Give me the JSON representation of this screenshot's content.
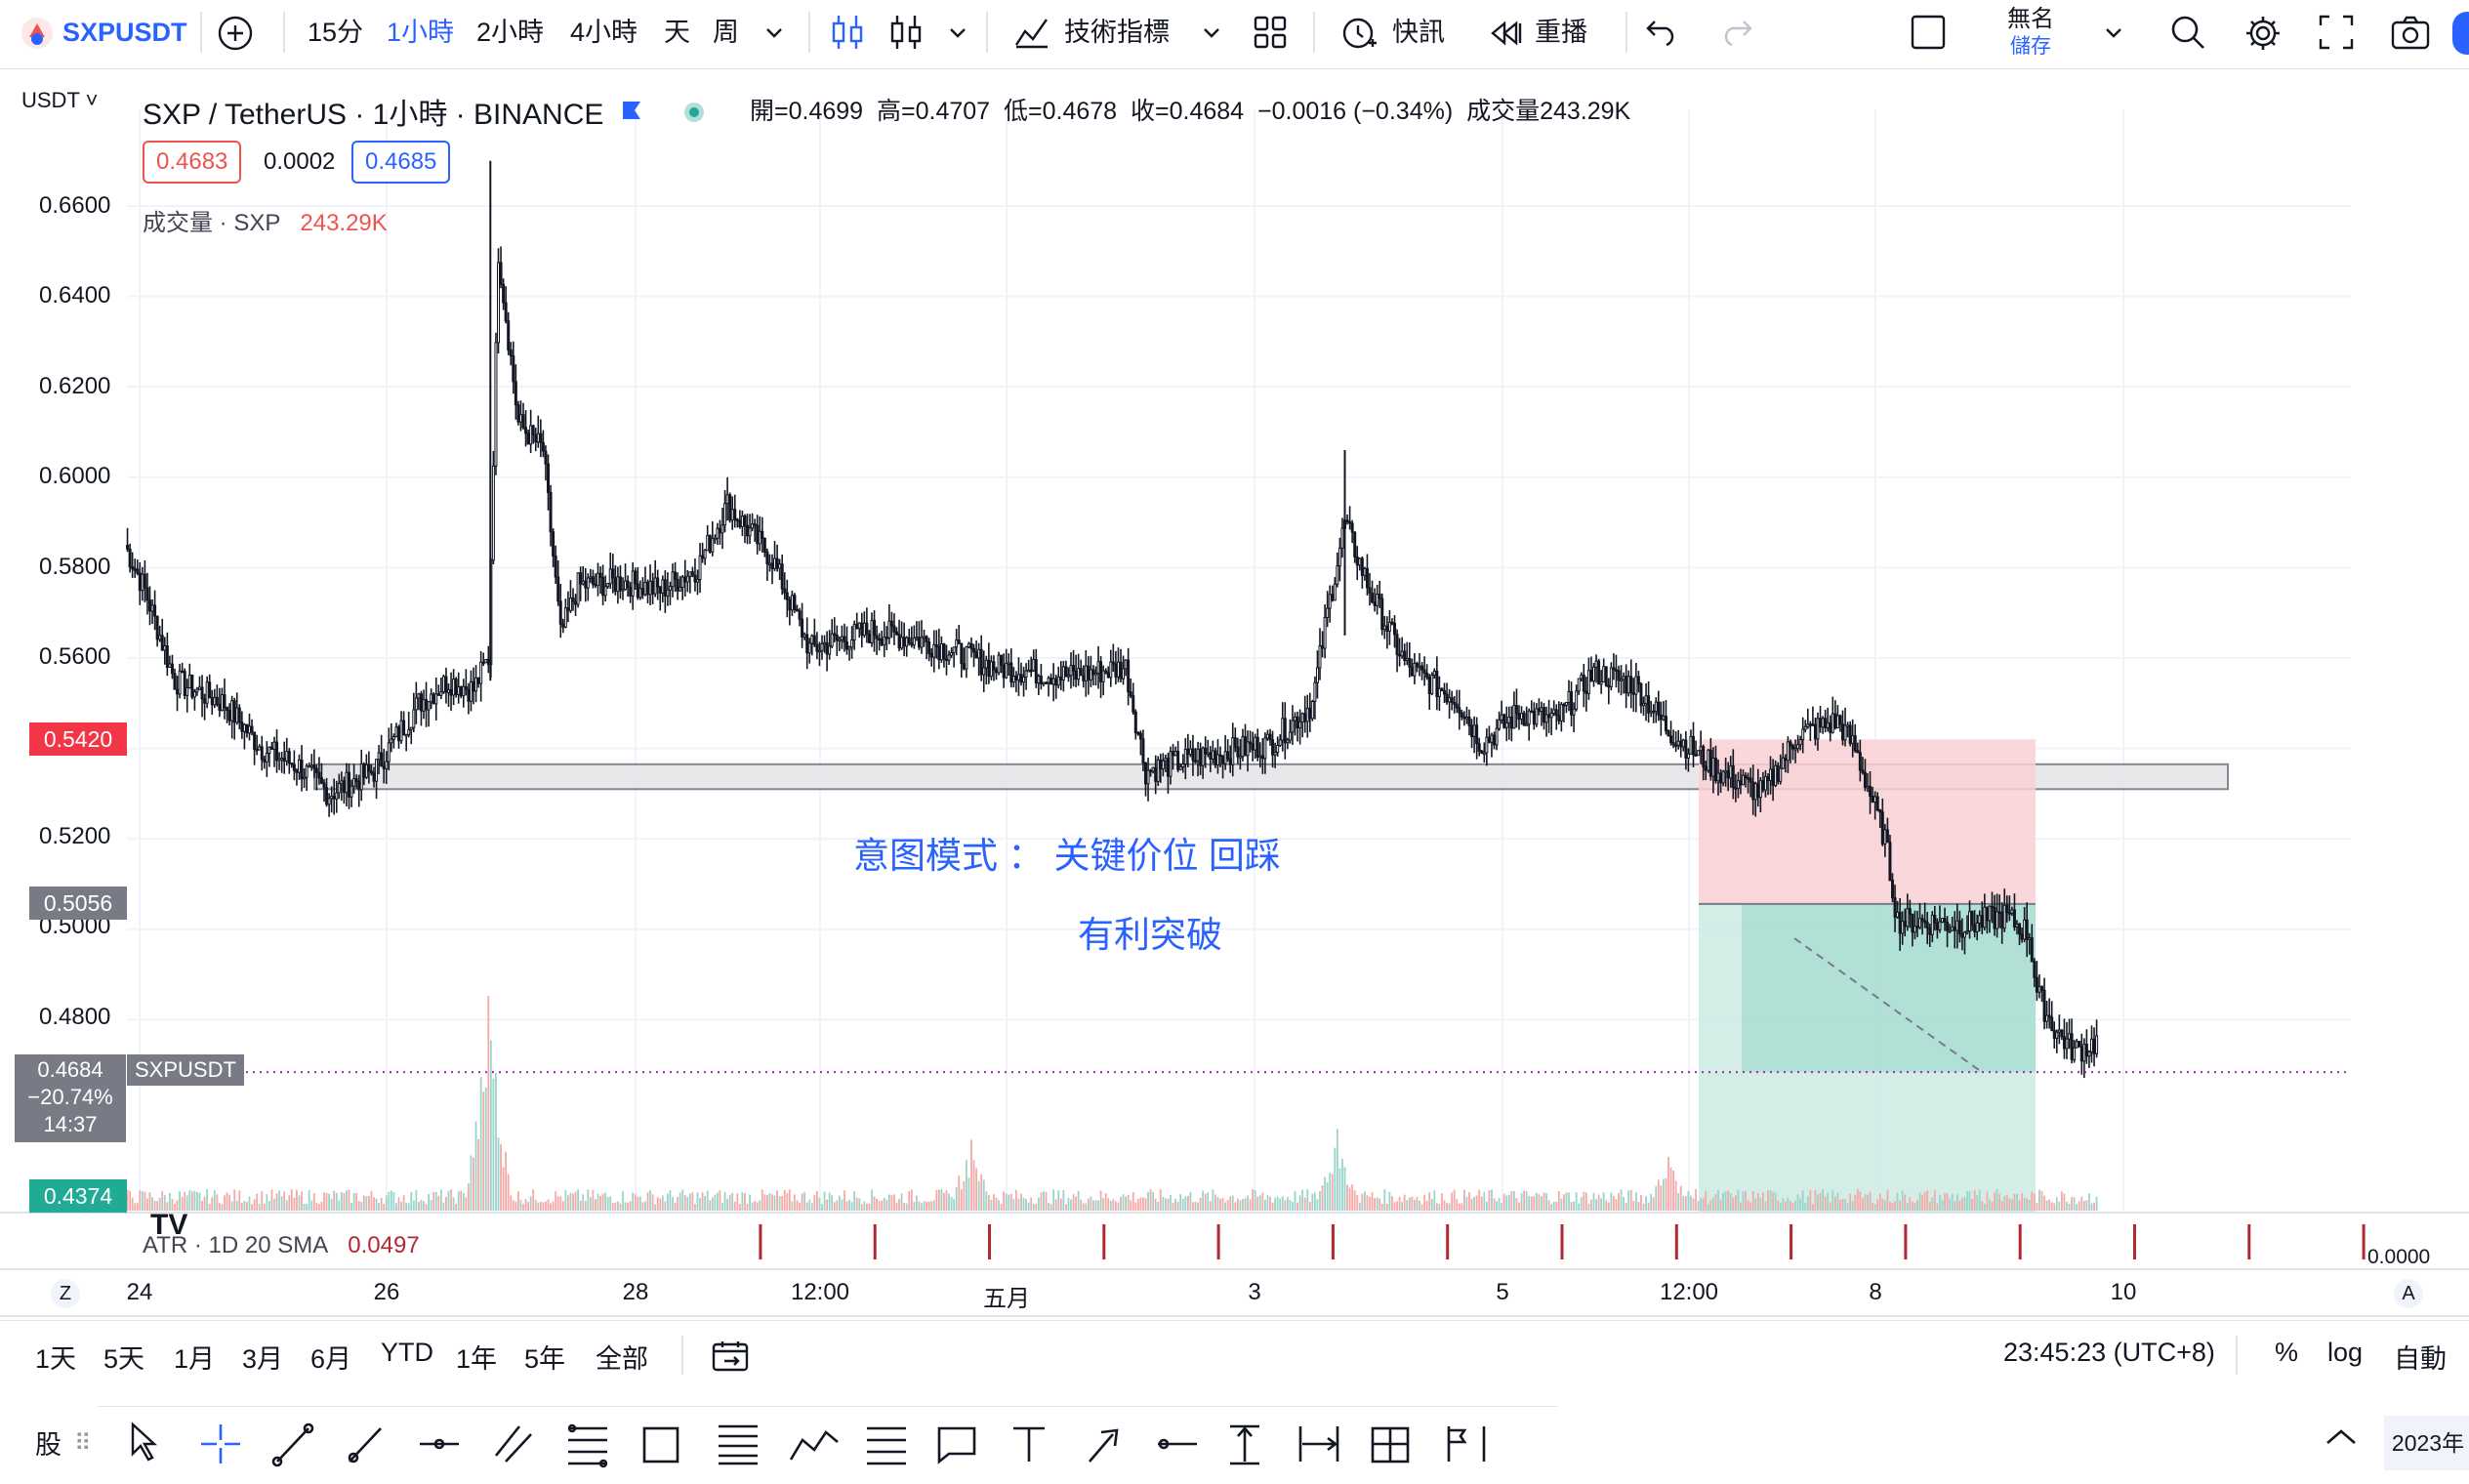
{
  "toolbar": {
    "symbol": "SXPUSDT",
    "intervals": [
      "15分",
      "1小時",
      "2小時",
      "4小時",
      "天",
      "周"
    ],
    "active_interval_index": 1,
    "indicators_label": "技術指標",
    "alert_label": "快訊",
    "replay_label": "重播",
    "layout_name": "無名",
    "save_label": "儲存"
  },
  "legend": {
    "currency": "USDT",
    "title": "SXP / TetherUS · 1小時 · BINANCE",
    "open_label": "開",
    "open": "0.4699",
    "high_label": "高",
    "high": "0.4707",
    "low_label": "低",
    "low": "0.4678",
    "close_label": "收",
    "close": "0.4684",
    "change": "−0.0016 (−0.34%)",
    "volume_label": "成交量",
    "volume": "243.29K",
    "bid": "0.4683",
    "spread": "0.0002",
    "ask": "0.4685",
    "volume_study": "成交量 · SXP",
    "volume_value": "243.29K",
    "atr_study": "ATR · 1D 20 SMA",
    "atr_value": "0.0497"
  },
  "annotations": {
    "line1": "意图模式 ： 关键价位 回踩",
    "line2": "有利突破"
  },
  "price_axis": {
    "ticks": [
      "0.6600",
      "0.6400",
      "0.6200",
      "0.6000",
      "0.5800",
      "0.5600",
      "0.5200",
      "0.5000",
      "0.4800"
    ],
    "tag_stop": "0.5420",
    "tag_entry": "0.5056",
    "tag_target": "0.4374",
    "current_price": "0.4684",
    "current_change": "−20.74%",
    "countdown": "14:37",
    "current_symbol": "SXPUSDT",
    "atr_axis": "0.0000",
    "z_label": "Z",
    "a_label": "A"
  },
  "time_axis": {
    "labels": [
      "24",
      "26",
      "28",
      "12:00",
      "五月",
      "3",
      "5",
      "12:00",
      "8",
      "10"
    ]
  },
  "footer": {
    "ranges": [
      "1天",
      "5天",
      "1月",
      "3月",
      "6月",
      "YTD",
      "1年",
      "5年",
      "全部"
    ],
    "clock": "23:45:23 (UTC+8)",
    "percent": "%",
    "log": "log",
    "auto": "自動",
    "bottom_left": "股",
    "bottom_right": "2023年"
  },
  "colors": {
    "up": "#26a69a",
    "down": "#ef5350",
    "accent": "#2962ff",
    "stop_zone": "#f8d0d4",
    "target_zone": "#cdebe3",
    "target_zone_dark": "#a9ddd2"
  },
  "chart_data": {
    "type": "candlestick",
    "ylim": [
      0.43,
      0.675
    ],
    "support_zone": [
      0.531,
      0.5365
    ],
    "position": {
      "stop": 0.542,
      "entry": 0.5056,
      "target": 0.4374,
      "current": 0.4684
    },
    "close_path": [
      [
        0,
        0.585
      ],
      [
        8,
        0.575
      ],
      [
        20,
        0.555
      ],
      [
        40,
        0.55
      ],
      [
        55,
        0.54
      ],
      [
        70,
        0.536
      ],
      [
        82,
        0.53
      ],
      [
        100,
        0.535
      ],
      [
        118,
        0.55
      ],
      [
        130,
        0.555
      ],
      [
        140,
        0.553
      ],
      [
        146,
        0.56
      ],
      [
        150,
        0.65
      ],
      [
        158,
        0.612
      ],
      [
        168,
        0.606
      ],
      [
        175,
        0.565
      ],
      [
        182,
        0.576
      ],
      [
        200,
        0.577
      ],
      [
        215,
        0.575
      ],
      [
        230,
        0.58
      ],
      [
        242,
        0.594
      ],
      [
        260,
        0.582
      ],
      [
        275,
        0.562
      ],
      [
        300,
        0.566
      ],
      [
        320,
        0.564
      ],
      [
        350,
        0.558
      ],
      [
        380,
        0.556
      ],
      [
        402,
        0.558
      ],
      [
        410,
        0.535
      ],
      [
        430,
        0.538
      ],
      [
        460,
        0.541
      ],
      [
        477,
        0.55
      ],
      [
        483,
        0.57
      ],
      [
        490,
        0.59
      ],
      [
        500,
        0.575
      ],
      [
        515,
        0.558
      ],
      [
        535,
        0.551
      ],
      [
        545,
        0.541
      ],
      [
        560,
        0.548
      ],
      [
        575,
        0.546
      ],
      [
        590,
        0.557
      ],
      [
        607,
        0.554
      ],
      [
        620,
        0.544
      ],
      [
        640,
        0.535
      ],
      [
        658,
        0.53
      ],
      [
        672,
        0.543
      ],
      [
        688,
        0.546
      ],
      [
        695,
        0.54
      ],
      [
        707,
        0.52
      ],
      [
        712,
        0.502
      ],
      [
        740,
        0.501
      ],
      [
        755,
        0.503
      ],
      [
        765,
        0.499
      ],
      [
        768,
        0.486
      ],
      [
        775,
        0.478
      ],
      [
        783,
        0.473
      ],
      [
        792,
        0.475
      ]
    ],
    "volume_spikes": [
      [
        146,
        1.0
      ],
      [
        340,
        0.33
      ],
      [
        487,
        0.38
      ],
      [
        620,
        0.25
      ],
      [
        752,
        0.1
      ]
    ],
    "atr_markers": [
      118,
      164,
      210,
      256,
      302,
      348,
      394,
      440,
      486,
      532,
      578,
      624,
      670,
      716,
      762
    ]
  }
}
